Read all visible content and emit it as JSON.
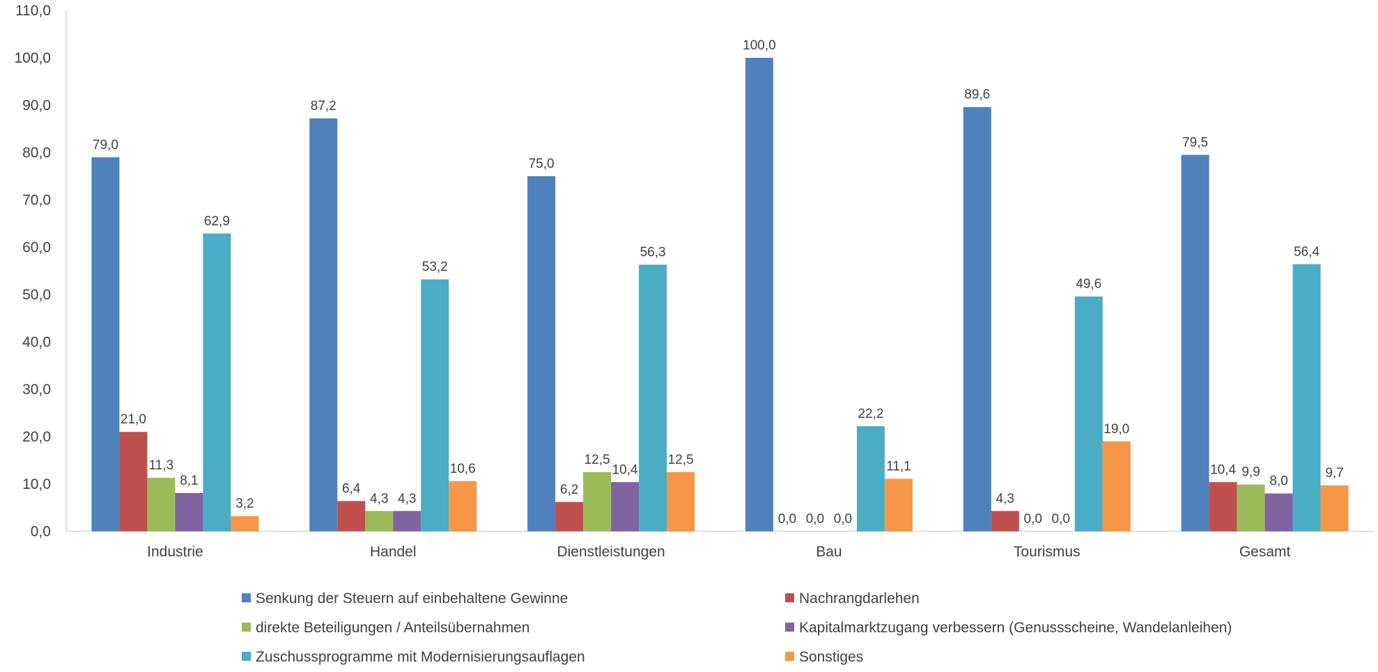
{
  "chart_data": {
    "type": "bar",
    "title": "",
    "xlabel": "",
    "ylabel": "",
    "ylim": [
      0,
      110
    ],
    "y_ticks": [
      "0,0",
      "10,0",
      "20,0",
      "30,0",
      "40,0",
      "50,0",
      "60,0",
      "70,0",
      "80,0",
      "90,0",
      "100,0",
      "110,0"
    ],
    "grid": false,
    "legend_position": "bottom",
    "categories": [
      "Industrie",
      "Handel",
      "Dienstleistungen",
      "Bau",
      "Tourismus",
      "Gesamt"
    ],
    "series": [
      {
        "name": "Senkung der Steuern auf einbehaltene Gewinne",
        "color": "#4F81BD",
        "values": [
          79.0,
          87.2,
          75.0,
          100.0,
          89.6,
          79.5
        ],
        "labels": [
          "79,0",
          "87,2",
          "75,0",
          "100,0",
          "89,6",
          "79,5"
        ]
      },
      {
        "name": "Nachrangdarlehen",
        "color": "#C0504D",
        "values": [
          21.0,
          6.4,
          6.2,
          0.0,
          4.3,
          10.4
        ],
        "labels": [
          "21,0",
          "6,4",
          "6,2",
          "0,0",
          "4,3",
          "10,4"
        ]
      },
      {
        "name": "direkte Beteiligungen / Anteilsübernahmen",
        "color": "#9BBB59",
        "values": [
          11.3,
          4.3,
          12.5,
          0.0,
          0.0,
          9.9
        ],
        "labels": [
          "11,3",
          "4,3",
          "12,5",
          "0,0",
          "0,0",
          "9,9"
        ]
      },
      {
        "name": "Kapitalmarktzugang verbessern (Genussscheine, Wandelanleihen)",
        "color": "#8064A2",
        "values": [
          8.1,
          4.3,
          10.4,
          0.0,
          0.0,
          8.0
        ],
        "labels": [
          "8,1",
          "4,3",
          "10,4",
          "0,0",
          "0,0",
          "8,0"
        ]
      },
      {
        "name": "Zuschussprogramme mit Modernisierungsauflagen",
        "color": "#4BACC6",
        "values": [
          62.9,
          53.2,
          56.3,
          22.2,
          49.6,
          56.4
        ],
        "labels": [
          "62,9",
          "53,2",
          "56,3",
          "22,2",
          "49,6",
          "56,4"
        ]
      },
      {
        "name": "Sonstiges",
        "color": "#F79646",
        "values": [
          3.2,
          10.6,
          12.5,
          11.1,
          19.0,
          9.7
        ],
        "labels": [
          "3,2",
          "10,6",
          "12,5",
          "11,1",
          "19,0",
          "9,7"
        ]
      }
    ]
  }
}
